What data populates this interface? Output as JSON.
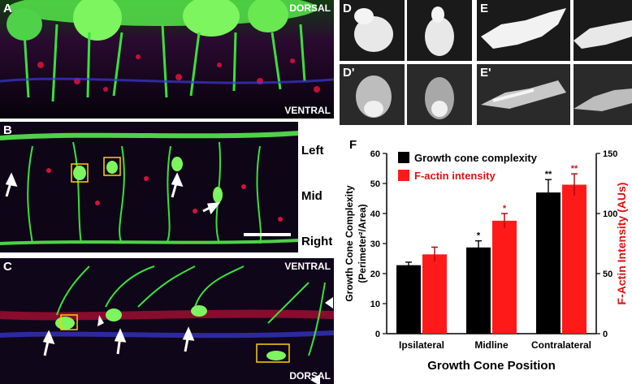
{
  "panels": {
    "A": {
      "label": "A",
      "top_label": "DORSAL",
      "bottom_label": "VENTRAL"
    },
    "B": {
      "label": "B",
      "side_labels": [
        "Left",
        "Mid",
        "Right"
      ]
    },
    "C": {
      "label": "C",
      "top_label": "VENTRAL",
      "bottom_label": "DORSAL"
    },
    "D": {
      "label": "D",
      "label2": "D'"
    },
    "E": {
      "label": "E",
      "label2": "E'"
    },
    "F": {
      "label": "F"
    }
  },
  "colors": {
    "complexity": "#000000",
    "factin": "#ff1a1a",
    "green": "#39e13a",
    "red": "#d8103a",
    "blue": "#3a3ad8"
  },
  "chart_data": {
    "type": "bar",
    "categories": [
      "Ipsilateral",
      "Midline",
      "Contralateral"
    ],
    "series": [
      {
        "name": "Growth cone complexity",
        "values": [
          22.8,
          28.7,
          47.0
        ],
        "errors": [
          1.0,
          2.2,
          4.3
        ],
        "axis": "left",
        "significance": [
          "",
          "*",
          "**"
        ]
      },
      {
        "name": "F-actin intensity",
        "values": [
          66,
          94,
          124
        ],
        "errors": [
          6,
          6,
          9
        ],
        "axis": "right",
        "significance": [
          "",
          "*",
          "**"
        ]
      }
    ],
    "xlabel": "Growth Cone Position",
    "ylabel_left_line1": "Growth Cone Complexity",
    "ylabel_left_line2": "(Perimeter²/Area)",
    "ylabel_right": "F-Actin Intensity (AUs)",
    "ylim_left": [
      0,
      60
    ],
    "ylim_right": [
      0,
      150
    ],
    "yticks_left": [
      "0",
      "10",
      "20",
      "30",
      "40",
      "50",
      "60"
    ],
    "yticks_right": [
      "0",
      "50",
      "100",
      "150"
    ],
    "legend_position": "top-left"
  }
}
